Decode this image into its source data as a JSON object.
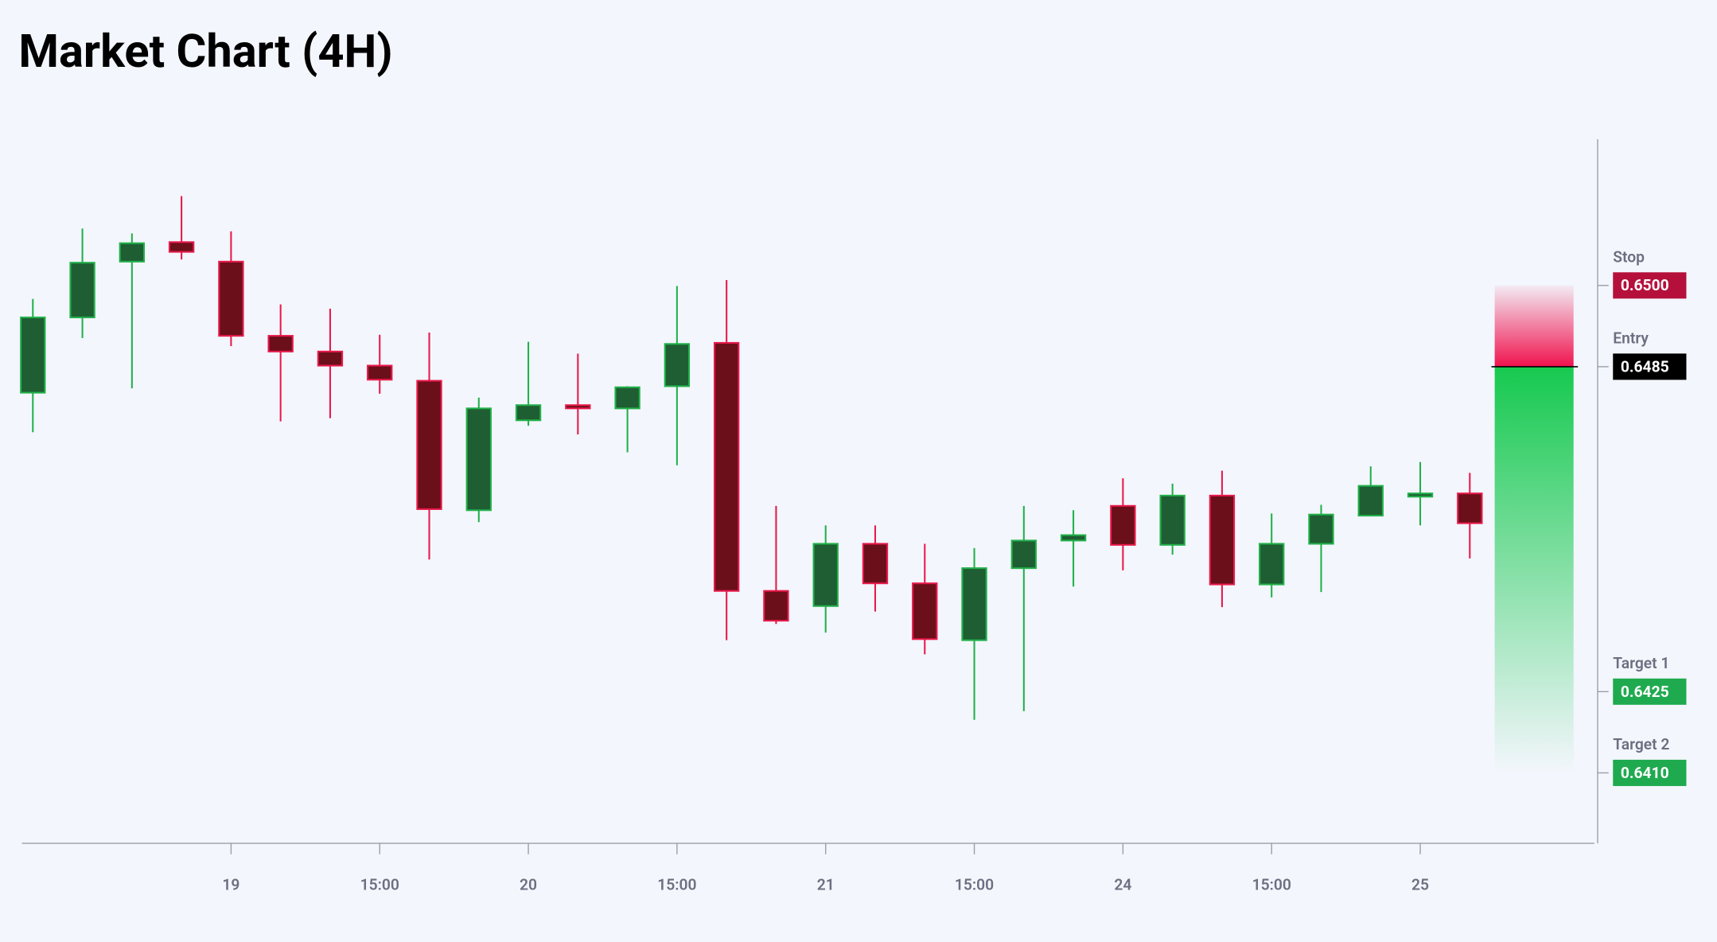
{
  "chart_data": {
    "type": "candlestick",
    "title": "Market Chart (4H)",
    "categories": [
      null,
      null,
      null,
      null,
      "19",
      null,
      null,
      "15:00",
      null,
      null,
      "20",
      null,
      null,
      "15:00",
      null,
      null,
      "21",
      null,
      null,
      "15:00",
      null,
      null,
      "24",
      null,
      null,
      "15:00",
      null,
      null,
      "25",
      null
    ],
    "open": [
      0.64802,
      0.64941,
      0.65044,
      0.6508,
      0.65044,
      0.64907,
      0.64878,
      0.64852,
      0.64824,
      0.64585,
      0.64751,
      0.64779,
      0.64773,
      0.64814,
      0.64894,
      0.64436,
      0.64408,
      0.64523,
      0.6445,
      0.64345,
      0.64478,
      0.64529,
      0.64593,
      0.64521,
      0.64612,
      0.64448,
      0.64523,
      0.64575,
      0.6461,
      0.64616
    ],
    "high": [
      0.64975,
      0.65105,
      0.65096,
      0.65165,
      0.651,
      0.64965,
      0.64957,
      0.64909,
      0.64913,
      0.64793,
      0.64896,
      0.64874,
      0.64814,
      0.64999,
      0.6501,
      0.64593,
      0.64557,
      0.64557,
      0.64523,
      0.64515,
      0.64593,
      0.64585,
      0.64644,
      0.64634,
      0.64658,
      0.64579,
      0.64595,
      0.64666,
      0.64674,
      0.64654
    ],
    "low": [
      0.64729,
      0.64903,
      0.6481,
      0.65048,
      0.64888,
      0.64749,
      0.64755,
      0.648,
      0.64494,
      0.64563,
      0.64741,
      0.64725,
      0.64692,
      0.64668,
      0.64345,
      0.64375,
      0.64359,
      0.64398,
      0.64319,
      0.64198,
      0.64214,
      0.64444,
      0.64474,
      0.64503,
      0.64406,
      0.64424,
      0.64434,
      0.64575,
      0.64557,
      0.64496
    ],
    "close": [
      0.64941,
      0.65042,
      0.65078,
      0.65062,
      0.64907,
      0.64878,
      0.64852,
      0.64826,
      0.64587,
      0.64773,
      0.64779,
      0.64773,
      0.64812,
      0.64892,
      0.64436,
      0.64381,
      0.64523,
      0.6445,
      0.64347,
      0.64478,
      0.64529,
      0.64539,
      0.64521,
      0.64612,
      0.64448,
      0.64523,
      0.64577,
      0.6463,
      0.64616,
      0.64561
    ],
    "up_color": {
      "fill": "#1e5e32",
      "stroke": "#22b04b"
    },
    "down_color": {
      "fill": "#6b0f1a",
      "stroke": "#e8194b"
    },
    "ylim": [
      0.6397,
      0.6527
    ],
    "levels": [
      {
        "name": "Stop",
        "value": 0.65,
        "label": "0.6500",
        "color": "#b5103c"
      },
      {
        "name": "Entry",
        "value": 0.6485,
        "label": "0.6485",
        "color": "#000000"
      },
      {
        "name": "Target 1",
        "value": 0.6425,
        "label": "0.6425",
        "color": "#1faa4f"
      },
      {
        "name": "Target 2",
        "value": 0.641,
        "label": "0.6410",
        "color": "#1faa4f"
      }
    ]
  }
}
